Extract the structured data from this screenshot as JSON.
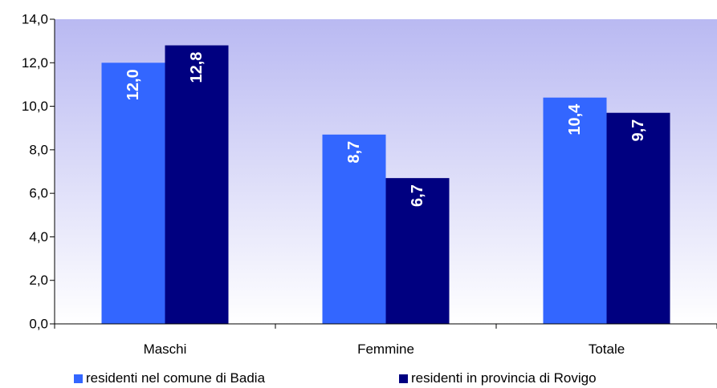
{
  "chart_data": {
    "type": "bar",
    "categories": [
      "Maschi",
      "Femmine",
      "Totale"
    ],
    "series": [
      {
        "name": "residenti nel comune di Badia",
        "values": [
          12.0,
          8.7,
          10.4
        ],
        "labels": [
          "12,0",
          "8,7",
          "10,4"
        ],
        "color": "#3366ff"
      },
      {
        "name": "residenti in provincia di Rovigo",
        "values": [
          12.8,
          6.7,
          9.7
        ],
        "labels": [
          "12,8",
          "6,7",
          "9,7"
        ],
        "color": "#000080"
      }
    ],
    "ylim": [
      0,
      14
    ],
    "yticks": [
      "0,0",
      "2,0",
      "4,0",
      "6,0",
      "8,0",
      "10,0",
      "12,0",
      "14,0"
    ],
    "grid": false,
    "legend": "bottom",
    "plot_background": [
      "#b9b9f2",
      "#ffffff"
    ]
  }
}
